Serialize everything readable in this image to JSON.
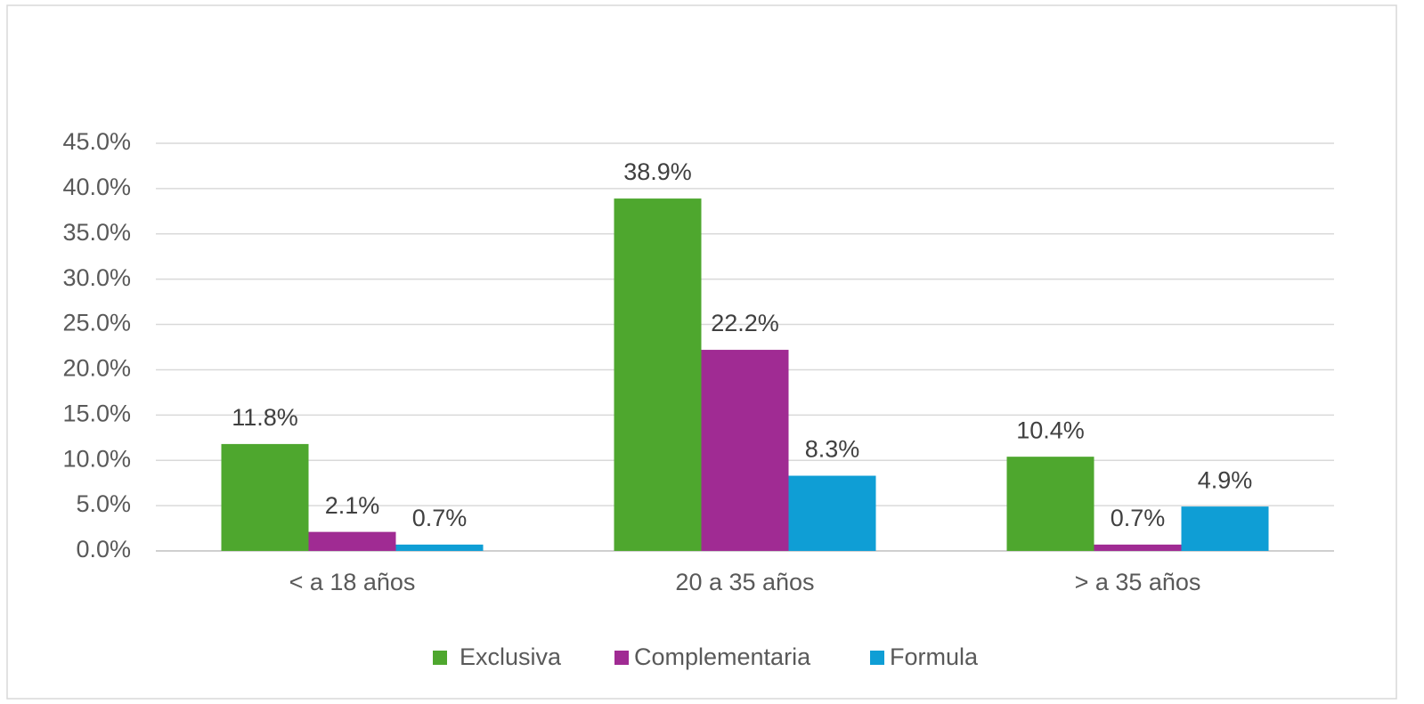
{
  "chart_data": {
    "type": "bar",
    "categories": [
      "< a 18 años",
      "20 a 35 años",
      "> a 35 años"
    ],
    "series": [
      {
        "name": "Exclusiva",
        "color": "#4ea72e",
        "values": [
          11.8,
          38.9,
          10.4
        ],
        "value_labels": [
          "11.8%",
          "38.9%",
          "10.4%"
        ]
      },
      {
        "name": "Complementaria",
        "color": "#a02b93",
        "values": [
          2.1,
          22.2,
          0.7
        ],
        "value_labels": [
          "2.1%",
          "22.2%",
          "0.7%"
        ]
      },
      {
        "name": "Formula",
        "color": "#0f9ed5",
        "values": [
          0.7,
          8.3,
          4.9
        ],
        "value_labels": [
          "0.7%",
          "8.3%",
          "4.9%"
        ]
      }
    ],
    "ylim": [
      0,
      45
    ],
    "yticks": [
      {
        "value": 0,
        "label": "0.0%"
      },
      {
        "value": 5,
        "label": "5.0%"
      },
      {
        "value": 10,
        "label": "10.0%"
      },
      {
        "value": 15,
        "label": "15.0%"
      },
      {
        "value": 20,
        "label": "20.0%"
      },
      {
        "value": 25,
        "label": "25.0%"
      },
      {
        "value": 30,
        "label": "30.0%"
      },
      {
        "value": 35,
        "label": "35.0%"
      },
      {
        "value": 40,
        "label": "40.0%"
      },
      {
        "value": 45,
        "label": "45.0%"
      }
    ],
    "grid": true,
    "legend": "bottom"
  }
}
